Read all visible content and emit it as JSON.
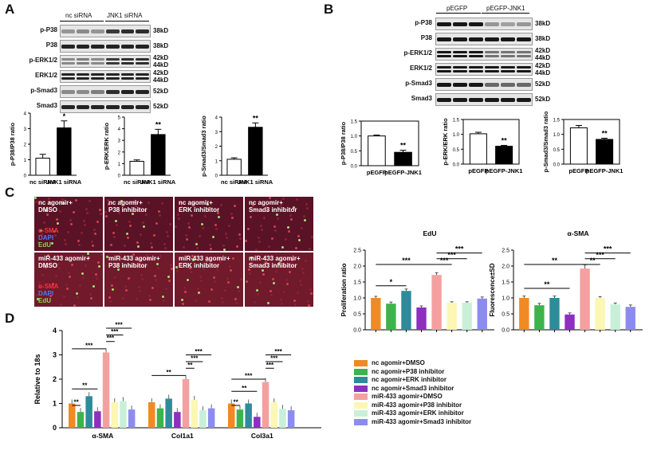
{
  "panels": {
    "a": "A",
    "b": "B",
    "c": "C",
    "d": "D"
  },
  "blot_a": {
    "groups": [
      "nc siRNA",
      "JNK1 siRNA"
    ],
    "rows": [
      {
        "name": "p-P38",
        "size": [
          "38kD"
        ]
      },
      {
        "name": "P38",
        "size": [
          "38kD"
        ]
      },
      {
        "name": "p-ERK1/2",
        "size": [
          "42kD",
          "44kD"
        ]
      },
      {
        "name": "ERK1/2",
        "size": [
          "42kD",
          "44kD"
        ]
      },
      {
        "name": "p-Smad3",
        "size": [
          "52kD"
        ]
      },
      {
        "name": "Smad3",
        "size": [
          "52kD"
        ]
      }
    ]
  },
  "blot_b": {
    "groups": [
      "pEGFP",
      "pEGFP-JNK1"
    ],
    "rows": [
      {
        "name": "p-P38",
        "size": [
          "38kD"
        ]
      },
      {
        "name": "P38",
        "size": [
          "38kD"
        ]
      },
      {
        "name": "p-ERK1/2",
        "size": [
          "42kD",
          "44kD"
        ]
      },
      {
        "name": "ERK1/2",
        "size": [
          "42kD",
          "44kD"
        ]
      },
      {
        "name": "p-Smad3",
        "size": [
          "52kD"
        ]
      },
      {
        "name": "Smad3",
        "size": [
          "52kD"
        ]
      }
    ]
  },
  "micro": {
    "captions": [
      "nc agomir+\nDMSO",
      "nc agomir+\nP38 inhibitor",
      "nc agomir+\nERK inhibitor",
      "nc agomir+\nSmad3 inhibitor",
      "miR-433 agomir+\nDMSO",
      "miR-433 agomir+\nP38 inhibitor",
      "miR-433 agomir+\nERK inhibitor",
      "miR-433 agomir+\nSmad3 inhibitor"
    ],
    "stain": [
      "α-SMA",
      "DAPI",
      "EdU"
    ]
  },
  "legend_d": [
    "nc agomir+DMSO",
    "nc agomir+P38 inhibitor",
    "nc agomir+ERK inhibitor",
    "nc agomir+Smad3 inhibitor",
    "miR-433 agomir+DMSO",
    "miR-433 agomir+P38 inhibitor",
    "miR-433 agomir+ERK inhibitor",
    "miR-433 agomir+Smad3 inhibitor"
  ],
  "colors8": [
    "#f08a24",
    "#3cb44b",
    "#2e8b9a",
    "#8e2fc0",
    "#f4a0a0",
    "#fbf7b4",
    "#c8f0d8",
    "#8c8cf0"
  ],
  "chart_data": [
    {
      "type": "bar",
      "id": "a1",
      "categories": [
        "nc siRNA",
        "JNK1 siRNA"
      ],
      "values": [
        1.1,
        3.05
      ],
      "errors": [
        0.25,
        0.45
      ],
      "sig": [
        "",
        "*"
      ],
      "ylabel": "p-P38/P38 ratio",
      "ylim": [
        0,
        4
      ],
      "ticks": [
        0,
        1,
        2,
        3,
        4
      ]
    },
    {
      "type": "bar",
      "id": "a2",
      "categories": [
        "nc siRNA",
        "JNK1 siRNA"
      ],
      "values": [
        1.2,
        3.5
      ],
      "errors": [
        0.12,
        0.45
      ],
      "sig": [
        "",
        "**"
      ],
      "ylabel": "p-ERK/ERK ratio",
      "ylim": [
        0,
        5
      ],
      "ticks": [
        0,
        1,
        2,
        3,
        4,
        5
      ]
    },
    {
      "type": "bar",
      "id": "a3",
      "categories": [
        "nc siRNA",
        "JNK1 siRNA"
      ],
      "values": [
        1.1,
        3.3
      ],
      "errors": [
        0.1,
        0.3
      ],
      "sig": [
        "",
        "**"
      ],
      "ylabel": "p-Smad3/Smad3 ratio",
      "ylim": [
        0,
        4
      ],
      "ticks": [
        0,
        1,
        2,
        3,
        4
      ]
    },
    {
      "type": "bar",
      "id": "b1",
      "categories": [
        "pEGFP",
        "pEGFP-JNK1"
      ],
      "values": [
        1.0,
        0.45
      ],
      "errors": [
        0.03,
        0.07
      ],
      "sig": [
        "",
        "**"
      ],
      "ylabel": "p-P38/P38 ratio",
      "ylim": [
        0,
        1.5
      ],
      "ticks": [
        0.0,
        0.5,
        1.0,
        1.5
      ]
    },
    {
      "type": "bar",
      "id": "b2",
      "categories": [
        "pEGFP",
        "pEGFP-JNK1"
      ],
      "values": [
        1.02,
        0.6
      ],
      "errors": [
        0.05,
        0.03
      ],
      "sig": [
        "",
        "**"
      ],
      "ylabel": "p-ERK/ERK ratio",
      "ylim": [
        0,
        1.5
      ],
      "ticks": [
        0.0,
        0.5,
        1.0,
        1.5
      ]
    },
    {
      "type": "bar",
      "id": "b3",
      "categories": [
        "pEGFP",
        "pEGFP-JNK1"
      ],
      "values": [
        1.22,
        0.83
      ],
      "errors": [
        0.08,
        0.04
      ],
      "sig": [
        "",
        "**"
      ],
      "ylabel": "p-Smad3/Smad3 ratio",
      "ylim": [
        0,
        1.5
      ],
      "ticks": [
        0.0,
        0.5,
        1.0,
        1.5
      ]
    },
    {
      "type": "bar",
      "id": "edu",
      "title": "EdU",
      "ylabel": "Proliferation ratio",
      "values": [
        1.0,
        0.82,
        1.22,
        0.7,
        1.72,
        0.85,
        0.85,
        0.98
      ],
      "errors": [
        0.05,
        0.05,
        0.06,
        0.05,
        0.07,
        0.03,
        0.03,
        0.05
      ],
      "ylim": [
        0,
        2.5
      ],
      "ticks": [
        0.0,
        0.5,
        1.0,
        1.5,
        2.0,
        2.5
      ],
      "brackets": [
        {
          "from": 0,
          "to": 2,
          "label": "*"
        },
        {
          "from": 0,
          "to": 4,
          "label": "***"
        },
        {
          "from": 4,
          "to": 5,
          "label": "***"
        },
        {
          "from": 4,
          "to": 6,
          "label": "***"
        },
        {
          "from": 4,
          "to": 7,
          "label": "***"
        }
      ]
    },
    {
      "type": "bar",
      "id": "sma",
      "title": "α-SMA",
      "ylabel": "Fluorescence±SD",
      "values": [
        1.0,
        0.77,
        1.0,
        0.48,
        1.92,
        1.0,
        0.8,
        0.72
      ],
      "errors": [
        0.06,
        0.06,
        0.06,
        0.05,
        0.12,
        0.04,
        0.04,
        0.06
      ],
      "ylim": [
        0,
        2.5
      ],
      "ticks": [
        0.0,
        0.5,
        1.0,
        1.5,
        2.0,
        2.5
      ],
      "brackets": [
        {
          "from": 0,
          "to": 3,
          "label": "**"
        },
        {
          "from": 0,
          "to": 4,
          "label": "**"
        },
        {
          "from": 4,
          "to": 5,
          "label": "**"
        },
        {
          "from": 4,
          "to": 6,
          "label": "***"
        },
        {
          "from": 4,
          "to": 7,
          "label": "***"
        }
      ]
    },
    {
      "type": "bar",
      "id": "d",
      "ylabel": "Relative to 18s",
      "categories": [
        "α-SMA",
        "Col1a1",
        "Col3a1"
      ],
      "series": [
        {
          "name": "nc agomir+DMSO",
          "values": [
            1.0,
            1.05,
            1.0
          ]
        },
        {
          "name": "nc agomir+P38 inhibitor",
          "values": [
            0.65,
            0.8,
            0.75
          ]
        },
        {
          "name": "nc agomir+ERK inhibitor",
          "values": [
            1.3,
            1.2,
            1.0
          ]
        },
        {
          "name": "nc agomir+Smad3 inhibitor",
          "values": [
            0.68,
            0.65,
            0.45
          ]
        },
        {
          "name": "miR-433 agomir+DMSO",
          "values": [
            3.1,
            2.0,
            1.88
          ]
        },
        {
          "name": "miR-433 agomir+P38 inhibitor",
          "values": [
            1.05,
            1.15,
            1.05
          ]
        },
        {
          "name": "miR-433 agomir+ERK inhibitor",
          "values": [
            1.1,
            0.72,
            0.78
          ]
        },
        {
          "name": "miR-433 agomir+Smad3 inhibitor",
          "values": [
            0.75,
            0.8,
            0.72
          ]
        }
      ],
      "ylim": [
        0,
        4
      ],
      "ticks": [
        0,
        1,
        2,
        3,
        4
      ],
      "sig_labels": [
        "**",
        "**",
        "***",
        "***",
        "***",
        "***"
      ]
    }
  ]
}
